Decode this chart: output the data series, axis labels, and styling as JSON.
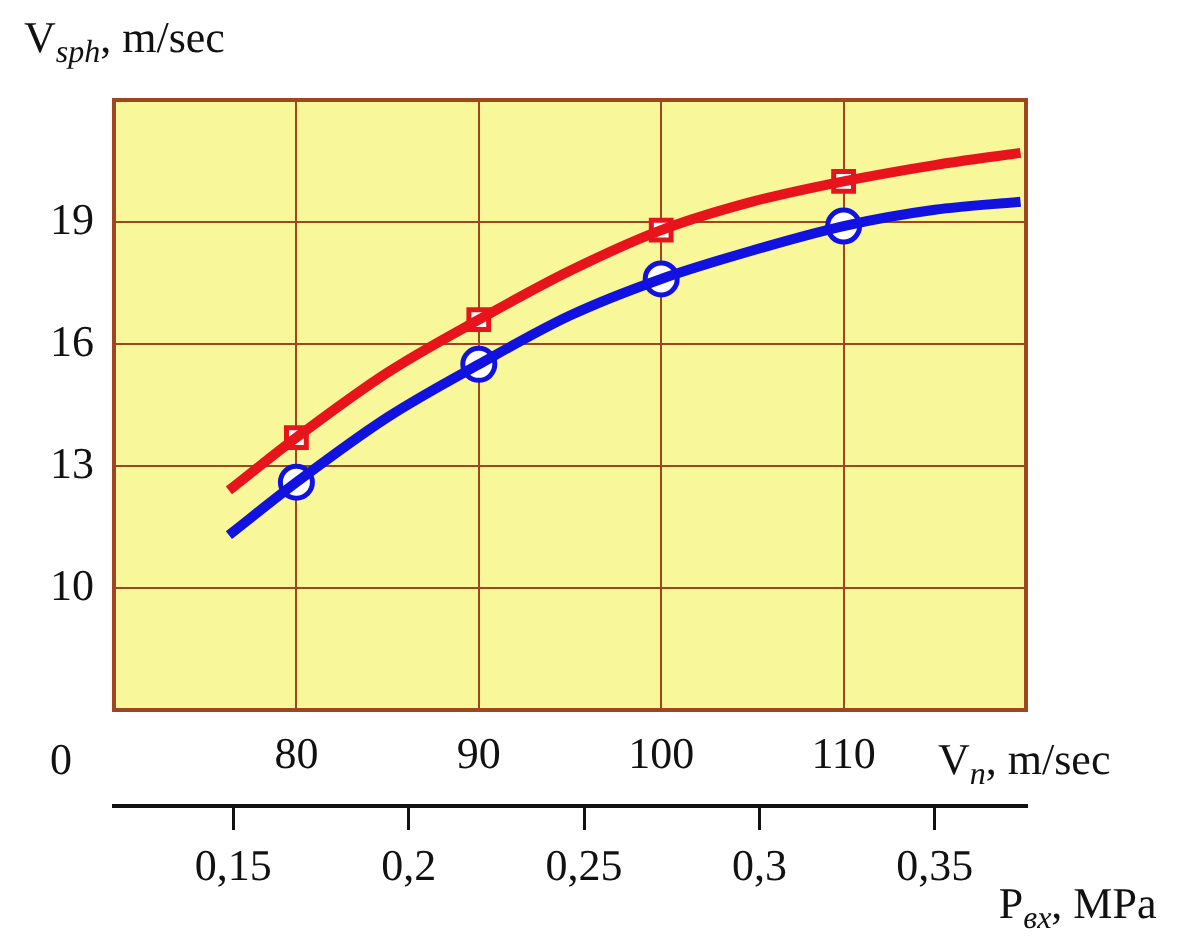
{
  "chart_data": {
    "type": "line",
    "xlabel": "V$_{n}$, m/sec",
    "ylabel": "V$_{sph}$, m/sec",
    "x2label": "P$_{вх}$, MPa",
    "xlim": [
      70,
      120
    ],
    "xticks": [
      80,
      90,
      100,
      110
    ],
    "ylim": [
      7,
      22
    ],
    "yticks": [
      10,
      13,
      16,
      19
    ],
    "x2lim": [
      0.116,
      0.376
    ],
    "x2ticks": [
      {
        "value": 0.15,
        "label": "0,15"
      },
      {
        "value": 0.2,
        "label": "0,2"
      },
      {
        "value": 0.25,
        "label": "0,25"
      },
      {
        "value": 0.3,
        "label": "0,3"
      },
      {
        "value": 0.35,
        "label": "0,35"
      }
    ],
    "grid": true,
    "legend": false,
    "annotations": [
      "0"
    ],
    "series": [
      {
        "type": "line",
        "color": "#e8141b",
        "marker": "none",
        "x": [
          76.3,
          80,
          85,
          90,
          95,
          100,
          105,
          110,
          115,
          119.7
        ],
        "values": [
          12.4,
          13.7,
          15.3,
          16.6,
          17.8,
          18.8,
          19.5,
          20.0,
          20.4,
          20.7
        ]
      },
      {
        "type": "line",
        "color": "#1212e0",
        "marker": "none",
        "x": [
          76.3,
          80,
          85,
          90,
          95,
          100,
          105,
          110,
          115,
          119.7
        ],
        "values": [
          11.3,
          12.6,
          14.2,
          15.5,
          16.7,
          17.6,
          18.3,
          18.9,
          19.3,
          19.5
        ]
      },
      {
        "type": "scatter",
        "color": "#e8141b",
        "marker": "square",
        "x": [
          80,
          90,
          100,
          110
        ],
        "values": [
          13.7,
          16.6,
          18.8,
          20.0
        ]
      },
      {
        "type": "scatter",
        "color": "#1212e0",
        "marker": "circle",
        "x": [
          80,
          90,
          100,
          110
        ],
        "values": [
          12.6,
          15.5,
          17.6,
          18.9
        ]
      }
    ]
  }
}
